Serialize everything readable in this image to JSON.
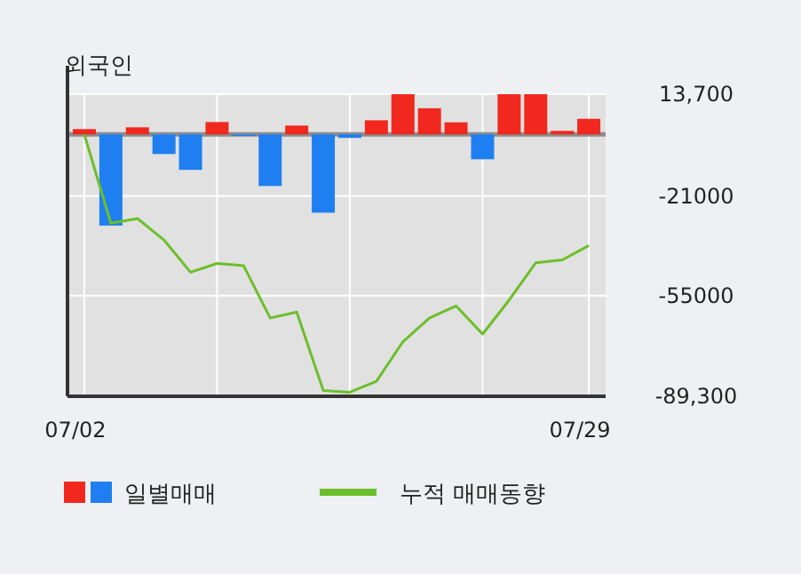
{
  "chart_data": {
    "type": "bar",
    "title": "외국인",
    "categories": [
      "07/02",
      null,
      null,
      null,
      null,
      null,
      null,
      null,
      null,
      null,
      null,
      null,
      null,
      null,
      null,
      null,
      null,
      null,
      null,
      "07/29"
    ],
    "series": [
      {
        "name": "일별매매",
        "colors": [
          "#f0281e",
          "#1f7ff0",
          "#f0281e",
          "#1f7ff0",
          "#1f7ff0",
          "#f0281e",
          "#1f7ff0",
          "#1f7ff0",
          "#f0281e",
          "#1f7ff0",
          "#1f7ff0",
          "#f0281e",
          "#f0281e",
          "#f0281e",
          "#f0281e",
          "#1f7ff0",
          "#f0281e",
          "#f0281e",
          "#f0281e",
          "#f0281e"
        ],
        "values": [
          1800,
          -31100,
          2400,
          -6700,
          -12100,
          4200,
          -500,
          -17600,
          3000,
          -26700,
          -1200,
          4800,
          13700,
          8900,
          4100,
          -8500,
          13700,
          13700,
          1200,
          5300
        ]
      },
      {
        "name": "누적 매매동향",
        "type": "line",
        "color": "#6cbf2a",
        "values": [
          0,
          -30300,
          -28700,
          -36000,
          -47000,
          -44000,
          -44800,
          -62600,
          -60600,
          -87300,
          -87900,
          -84200,
          -70700,
          -62600,
          -58500,
          -68100,
          -56500,
          -43800,
          -42800,
          -37900
        ]
      }
    ],
    "ylim": [
      -89300,
      13700
    ],
    "yticks": [
      {
        "value": 13700,
        "label": "13,700"
      },
      -21000,
      -55000,
      {
        "value": -89300,
        "label": "-89,300"
      }
    ],
    "ref_lines": [
      {
        "axis": "y",
        "value": 0,
        "color": "#8c8c8c"
      }
    ],
    "grid": true,
    "legend": "bottom",
    "marker": "none",
    "line_style": "solid"
  }
}
